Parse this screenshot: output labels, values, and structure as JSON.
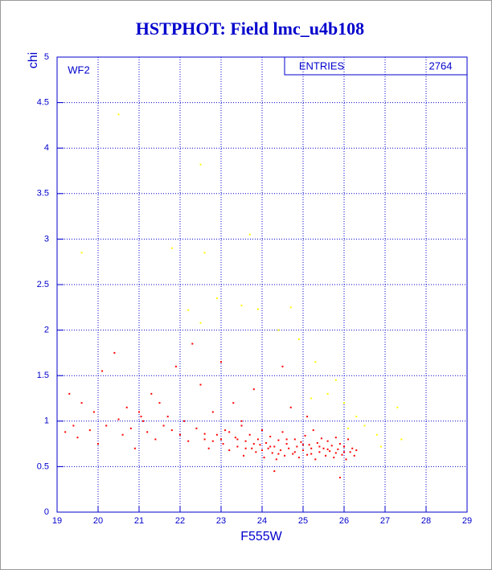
{
  "chart_data": {
    "type": "scatter",
    "title": "HSTPHOT: Field lmc_u4b108",
    "panel_label": "WF2",
    "stats": {
      "label": "ENTRIES",
      "value": "2764"
    },
    "x_label": "F555W",
    "y_label": "chi",
    "xlim": [
      19,
      29
    ],
    "ylim": [
      0,
      5
    ],
    "xticks": [
      19,
      20,
      21,
      22,
      23,
      24,
      25,
      26,
      27,
      28,
      29
    ],
    "yticks": [
      0,
      0.5,
      1,
      1.5,
      2,
      2.5,
      3,
      3.5,
      4,
      4.5,
      5
    ],
    "grid": true,
    "axis_color": "#0000cc",
    "grid_color": "#0000cc",
    "series": [
      {
        "color": "#ff0000",
        "x": [
          19.2,
          19.3,
          19.4,
          19.5,
          19.6,
          19.8,
          19.9,
          20.0,
          20.1,
          20.2,
          20.4,
          20.5,
          20.6,
          20.7,
          20.8,
          20.9,
          21.0,
          21.05,
          21.1,
          21.2,
          21.3,
          21.4,
          21.5,
          21.6,
          21.7,
          21.8,
          21.9,
          22.0,
          22.1,
          22.2,
          22.3,
          22.4,
          22.5,
          22.6,
          22.7,
          22.8,
          22.9,
          23.0,
          23.05,
          23.1,
          23.2,
          23.3,
          23.35,
          23.4,
          23.5,
          23.55,
          23.6,
          23.7,
          23.75,
          23.8,
          23.85,
          23.9,
          23.95,
          24.0,
          24.05,
          24.1,
          24.15,
          24.2,
          24.25,
          24.3,
          24.35,
          24.4,
          24.45,
          24.5,
          24.55,
          24.6,
          24.65,
          24.7,
          24.75,
          24.8,
          24.85,
          24.9,
          24.95,
          25.0,
          25.05,
          25.1,
          25.15,
          25.2,
          25.25,
          25.3,
          25.35,
          25.4,
          25.45,
          25.5,
          25.55,
          25.6,
          25.65,
          25.7,
          25.75,
          25.8,
          25.85,
          25.9,
          25.95,
          26.0,
          26.05,
          26.1,
          26.15,
          26.2,
          26.25,
          26.3,
          23.2,
          23.4,
          23.6,
          23.8,
          24.0,
          24.2,
          24.4,
          24.6,
          24.8,
          25.0,
          25.2,
          25.4,
          25.6,
          25.8,
          26.0,
          22.8,
          22.6,
          23.0,
          24.3,
          25.9,
          24.5,
          23.5,
          25.1
        ],
        "values": [
          0.88,
          1.3,
          0.95,
          0.82,
          1.2,
          0.9,
          1.1,
          0.75,
          1.55,
          0.95,
          1.75,
          1.02,
          0.85,
          1.15,
          0.92,
          0.7,
          1.1,
          1.05,
          1.0,
          0.88,
          1.3,
          0.8,
          1.2,
          0.95,
          1.05,
          0.9,
          1.6,
          0.85,
          1.0,
          0.78,
          1.85,
          0.92,
          1.4,
          0.8,
          0.7,
          1.1,
          0.85,
          1.65,
          0.75,
          0.9,
          0.68,
          1.2,
          0.82,
          0.72,
          0.95,
          0.62,
          0.78,
          0.85,
          0.7,
          1.35,
          0.66,
          0.8,
          0.74,
          0.9,
          0.6,
          0.76,
          0.7,
          0.83,
          0.65,
          0.72,
          0.58,
          0.79,
          0.68,
          0.88,
          0.62,
          0.75,
          0.7,
          1.15,
          0.64,
          0.8,
          0.72,
          0.6,
          0.77,
          0.68,
          0.84,
          0.63,
          0.74,
          0.7,
          0.9,
          0.58,
          0.76,
          0.66,
          0.81,
          0.7,
          0.62,
          0.78,
          0.67,
          0.73,
          0.6,
          0.82,
          0.69,
          0.75,
          0.63,
          0.72,
          0.58,
          0.8,
          0.66,
          0.7,
          0.62,
          0.68,
          0.88,
          0.8,
          0.7,
          0.75,
          0.68,
          0.72,
          0.64,
          0.8,
          0.66,
          0.74,
          0.64,
          0.72,
          0.69,
          0.65,
          0.66,
          0.78,
          0.86,
          0.8,
          0.45,
          0.38,
          1.6,
          1.0,
          1.05
        ]
      },
      {
        "color": "#ffff00",
        "x": [
          20.5,
          22.5,
          19.6,
          21.8,
          22.6,
          23.7,
          22.2,
          22.5,
          23.5,
          23.9,
          24.4,
          24.7,
          25.3,
          25.6,
          26.0,
          26.3,
          26.8,
          27.3,
          27.4,
          26.9,
          25.8,
          24.9,
          22.9,
          26.5,
          25.2,
          26.1
        ],
        "values": [
          4.37,
          3.82,
          2.85,
          2.9,
          2.85,
          3.05,
          2.22,
          2.08,
          2.27,
          2.23,
          2.0,
          2.25,
          1.65,
          1.3,
          1.2,
          1.05,
          0.85,
          1.15,
          0.8,
          0.72,
          1.45,
          1.9,
          2.35,
          0.95,
          1.25,
          0.92
        ]
      }
    ]
  }
}
